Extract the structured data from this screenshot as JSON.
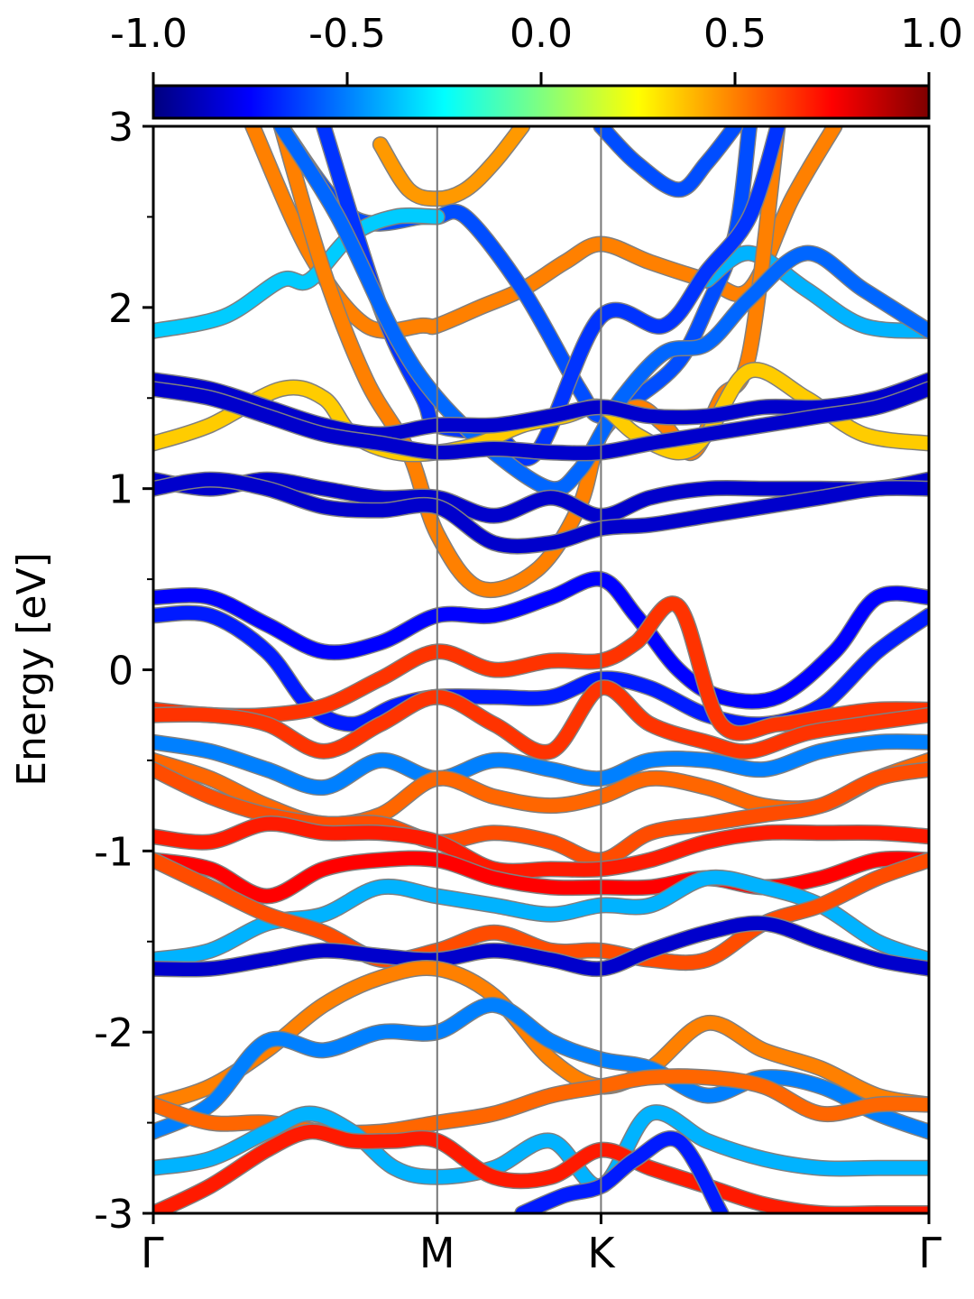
{
  "chart_data": {
    "type": "line",
    "title": "",
    "ylabel": "Energy [eV]",
    "xlabel": "",
    "ylim": [
      -3,
      3
    ],
    "y_ticks": [
      "-3",
      "-2",
      "-1",
      "0",
      "1",
      "2",
      "3"
    ],
    "x_ticks": [
      "Γ",
      "M",
      "K",
      "Γ"
    ],
    "x_tick_positions": [
      0,
      1,
      1.577,
      2.732
    ],
    "grid": false,
    "colorbar": {
      "colormap": "jet",
      "range": [
        -1.0,
        1.0
      ],
      "ticks": [
        "-1.0",
        "-0.5",
        "0.0",
        "0.5",
        "1.0"
      ],
      "placement": "top"
    },
    "series": [
      {
        "color_value": 0.5,
        "x": [
          0.35,
          0.55,
          0.75,
          0.95,
          1.0,
          1.15,
          1.3,
          1.45,
          1.577,
          1.75,
          1.95,
          2.1,
          2.25,
          2.4
        ],
        "y": [
          3.0,
          2.3,
          1.9,
          1.9,
          1.9,
          2.0,
          2.1,
          2.25,
          2.35,
          2.25,
          2.15,
          2.1,
          2.6,
          3.0
        ]
      },
      {
        "color_value": 0.45,
        "x": [
          0.8,
          0.9,
          1.0,
          1.1,
          1.2,
          1.3
        ],
        "y": [
          2.9,
          2.65,
          2.6,
          2.65,
          2.8,
          3.0
        ]
      },
      {
        "color_value": -0.6,
        "x": [
          0.45,
          0.7,
          0.95,
          1.0,
          1.1,
          1.3,
          1.5,
          1.577,
          1.7,
          1.85,
          1.95,
          2.05,
          2.1
        ],
        "y": [
          3.0,
          2.5,
          2.5,
          2.5,
          2.5,
          2.1,
          1.55,
          1.4,
          1.5,
          1.7,
          2.0,
          2.4,
          3.0
        ]
      },
      {
        "color_value": -0.6,
        "x": [
          1.577,
          1.7,
          1.85,
          1.95,
          2.05
        ],
        "y": [
          3.0,
          2.8,
          2.65,
          2.8,
          3.0
        ]
      },
      {
        "color_value": -0.35,
        "x": [
          0,
          0.25,
          0.45,
          0.55,
          0.7,
          0.85,
          1.0
        ],
        "y": [
          1.87,
          1.95,
          2.15,
          2.15,
          2.4,
          2.5,
          2.5
        ]
      },
      {
        "color_value": -0.4,
        "x": [
          1.95,
          2.1,
          2.3,
          2.5,
          2.732
        ],
        "y": [
          2.15,
          2.3,
          2.1,
          1.9,
          1.87
        ]
      },
      {
        "color_value": 0.5,
        "x": [
          0.45,
          0.6,
          0.75,
          0.9,
          1.0,
          1.15,
          1.35,
          1.5,
          1.577,
          1.7,
          1.8,
          1.9,
          2.0,
          2.1,
          2.2
        ],
        "y": [
          3.0,
          2.2,
          1.6,
          1.2,
          0.75,
          0.45,
          0.55,
          0.9,
          1.3,
          1.45,
          1.35,
          1.2,
          1.5,
          1.75,
          3.0
        ]
      },
      {
        "color_value": -0.65,
        "x": [
          0.6,
          0.8,
          0.95,
          1.0,
          1.2,
          1.35,
          1.577,
          1.8,
          1.95,
          2.1,
          2.2
        ],
        "y": [
          3.0,
          2.0,
          1.5,
          1.35,
          1.3,
          1.2,
          1.95,
          1.9,
          2.2,
          2.5,
          3.0
        ]
      },
      {
        "color_value": -0.55,
        "x": [
          0.45,
          0.65,
          0.85,
          1.0,
          1.2,
          1.4,
          1.5,
          1.577,
          1.65,
          1.8,
          1.95,
          2.1,
          2.3,
          2.5,
          2.732
        ],
        "y": [
          3.0,
          2.5,
          1.85,
          1.5,
          1.2,
          1.0,
          1.1,
          1.3,
          1.5,
          1.75,
          1.8,
          2.05,
          2.3,
          2.1,
          1.87
        ]
      },
      {
        "color_value": 0.35,
        "x": [
          0,
          0.2,
          0.45,
          0.6,
          0.7,
          0.85,
          1.0,
          1.15,
          1.3,
          1.45,
          1.577,
          1.7,
          1.85,
          1.95,
          2.1,
          2.3,
          2.5,
          2.732
        ],
        "y": [
          1.25,
          1.35,
          1.55,
          1.5,
          1.3,
          1.2,
          1.2,
          1.25,
          1.35,
          1.4,
          1.45,
          1.3,
          1.2,
          1.3,
          1.65,
          1.5,
          1.3,
          1.25
        ]
      },
      {
        "color_value": -0.85,
        "x": [
          0,
          0.2,
          0.4,
          0.6,
          0.8,
          1.0,
          1.2,
          1.4,
          1.577,
          1.75,
          1.95,
          2.15,
          2.35,
          2.55,
          2.732
        ],
        "y": [
          1.6,
          1.55,
          1.45,
          1.35,
          1.3,
          1.35,
          1.35,
          1.4,
          1.45,
          1.4,
          1.4,
          1.45,
          1.45,
          1.5,
          1.6
        ]
      },
      {
        "color_value": -0.85,
        "x": [
          0,
          0.2,
          0.4,
          0.6,
          0.8,
          1.0,
          1.2,
          1.4,
          1.577,
          1.75,
          1.95,
          2.15,
          2.35,
          2.55,
          2.732
        ],
        "y": [
          1.55,
          1.5,
          1.4,
          1.3,
          1.25,
          1.2,
          1.22,
          1.2,
          1.2,
          1.25,
          1.3,
          1.35,
          1.4,
          1.45,
          1.55
        ]
      },
      {
        "color_value": -0.85,
        "x": [
          0,
          0.2,
          0.4,
          0.6,
          0.8,
          1.0,
          1.2,
          1.4,
          1.577,
          1.75,
          1.95,
          2.15,
          2.35,
          2.55,
          2.732
        ],
        "y": [
          1.05,
          1.0,
          1.05,
          1.0,
          0.95,
          0.95,
          0.85,
          0.95,
          0.85,
          0.95,
          1.0,
          1.0,
          1.0,
          1.0,
          1.05
        ]
      },
      {
        "color_value": -0.85,
        "x": [
          0,
          0.2,
          0.4,
          0.6,
          0.8,
          1.0,
          1.2,
          1.4,
          1.577,
          1.75,
          1.95,
          2.15,
          2.35,
          2.55,
          2.732
        ],
        "y": [
          1.0,
          1.05,
          1.0,
          0.9,
          0.88,
          0.9,
          0.7,
          0.7,
          0.78,
          0.8,
          0.85,
          0.9,
          0.95,
          1.0,
          1.0
        ]
      },
      {
        "color_value": -0.75,
        "x": [
          0,
          0.2,
          0.4,
          0.6,
          0.8,
          1.0,
          1.2,
          1.4,
          1.577,
          1.7,
          1.85,
          2.0,
          2.2,
          2.4,
          2.55,
          2.732
        ],
        "y": [
          0.4,
          0.4,
          0.25,
          0.1,
          0.15,
          0.3,
          0.3,
          0.4,
          0.5,
          0.3,
          0.0,
          -0.15,
          -0.15,
          0.1,
          0.4,
          0.4
        ]
      },
      {
        "color_value": -0.7,
        "x": [
          0,
          0.2,
          0.4,
          0.55,
          0.7,
          0.85,
          1.0,
          1.2,
          1.4,
          1.577,
          1.75,
          1.95,
          2.15,
          2.35,
          2.55,
          2.732
        ],
        "y": [
          0.3,
          0.3,
          0.1,
          -0.2,
          -0.3,
          -0.2,
          -0.15,
          -0.15,
          -0.15,
          -0.05,
          -0.1,
          -0.25,
          -0.3,
          -0.2,
          0.1,
          0.3
        ]
      },
      {
        "color_value": 0.65,
        "x": [
          0,
          0.2,
          0.4,
          0.6,
          0.8,
          1.0,
          1.2,
          1.4,
          1.577,
          1.7,
          1.85,
          2.0,
          2.2,
          2.4,
          2.55,
          2.732
        ],
        "y": [
          -0.22,
          -0.25,
          -0.25,
          -0.2,
          -0.05,
          0.1,
          0.0,
          0.05,
          0.05,
          0.15,
          0.35,
          -0.3,
          -0.3,
          -0.25,
          -0.22,
          -0.22
        ]
      },
      {
        "color_value": 0.65,
        "x": [
          0,
          0.2,
          0.4,
          0.6,
          0.8,
          1.0,
          1.2,
          1.4,
          1.577,
          1.75,
          1.95,
          2.1,
          2.3,
          2.5,
          2.732
        ],
        "y": [
          -0.25,
          -0.25,
          -0.3,
          -0.45,
          -0.3,
          -0.15,
          -0.3,
          -0.45,
          -0.1,
          -0.3,
          -0.4,
          -0.45,
          -0.35,
          -0.3,
          -0.25
        ]
      },
      {
        "color_value": -0.5,
        "x": [
          0,
          0.2,
          0.4,
          0.6,
          0.8,
          1.0,
          1.2,
          1.4,
          1.577,
          1.75,
          1.95,
          2.15,
          2.35,
          2.55,
          2.732
        ],
        "y": [
          -0.4,
          -0.45,
          -0.55,
          -0.65,
          -0.5,
          -0.6,
          -0.5,
          -0.55,
          -0.6,
          -0.5,
          -0.5,
          -0.55,
          -0.45,
          -0.4,
          -0.4
        ]
      },
      {
        "color_value": 0.55,
        "x": [
          0,
          0.2,
          0.4,
          0.6,
          0.8,
          1.0,
          1.2,
          1.4,
          1.577,
          1.75,
          1.95,
          2.15,
          2.35,
          2.55,
          2.732
        ],
        "y": [
          -0.5,
          -0.6,
          -0.75,
          -0.85,
          -0.8,
          -0.6,
          -0.7,
          -0.75,
          -0.7,
          -0.6,
          -0.65,
          -0.75,
          -0.75,
          -0.6,
          -0.5
        ]
      },
      {
        "color_value": 0.6,
        "x": [
          0,
          0.2,
          0.4,
          0.6,
          0.8,
          1.0,
          1.2,
          1.4,
          1.577,
          1.75,
          1.95,
          2.15,
          2.35,
          2.55,
          2.732
        ],
        "y": [
          -0.55,
          -0.7,
          -0.8,
          -0.85,
          -0.85,
          -0.95,
          -0.9,
          -0.95,
          -1.05,
          -0.9,
          -0.85,
          -0.8,
          -0.75,
          -0.6,
          -0.55
        ]
      },
      {
        "color_value": 0.7,
        "x": [
          0,
          0.2,
          0.4,
          0.6,
          0.8,
          1.0,
          1.2,
          1.4,
          1.577,
          1.75,
          1.95,
          2.15,
          2.35,
          2.55,
          2.732
        ],
        "y": [
          -0.92,
          -0.95,
          -0.85,
          -0.9,
          -0.9,
          -0.95,
          -1.1,
          -1.1,
          -1.1,
          -1.05,
          -0.95,
          -0.9,
          -0.9,
          -0.9,
          -0.92
        ]
      },
      {
        "color_value": 0.75,
        "x": [
          0,
          0.2,
          0.4,
          0.6,
          0.8,
          1.0,
          1.2,
          1.4,
          1.577,
          1.75,
          1.95,
          2.15,
          2.35,
          2.55,
          2.732
        ],
        "y": [
          -1.05,
          -1.1,
          -1.25,
          -1.1,
          -1.05,
          -1.05,
          -1.15,
          -1.2,
          -1.2,
          -1.2,
          -1.15,
          -1.2,
          -1.15,
          -1.05,
          -1.05
        ]
      },
      {
        "color_value": -0.4,
        "x": [
          0,
          0.2,
          0.4,
          0.6,
          0.8,
          1.0,
          1.2,
          1.4,
          1.577,
          1.75,
          1.95,
          2.15,
          2.35,
          2.55,
          2.732
        ],
        "y": [
          -1.6,
          -1.55,
          -1.4,
          -1.35,
          -1.2,
          -1.25,
          -1.3,
          -1.35,
          -1.3,
          -1.3,
          -1.15,
          -1.2,
          -1.3,
          -1.5,
          -1.6
        ]
      },
      {
        "color_value": 0.6,
        "x": [
          0,
          0.2,
          0.4,
          0.6,
          0.8,
          1.0,
          1.2,
          1.4,
          1.577,
          1.75,
          1.95,
          2.15,
          2.35,
          2.55,
          2.732
        ],
        "y": [
          -1.05,
          -1.2,
          -1.35,
          -1.45,
          -1.6,
          -1.55,
          -1.45,
          -1.55,
          -1.55,
          -1.6,
          -1.6,
          -1.4,
          -1.3,
          -1.15,
          -1.05
        ]
      },
      {
        "color_value": -0.85,
        "x": [
          0,
          0.2,
          0.4,
          0.6,
          0.8,
          1.0,
          1.2,
          1.4,
          1.577,
          1.75,
          1.95,
          2.15,
          2.35,
          2.55,
          2.732
        ],
        "y": [
          -1.65,
          -1.65,
          -1.6,
          -1.55,
          -1.58,
          -1.6,
          -1.55,
          -1.6,
          -1.65,
          -1.55,
          -1.45,
          -1.4,
          -1.5,
          -1.6,
          -1.65
        ]
      },
      {
        "color_value": 0.5,
        "x": [
          0,
          0.2,
          0.4,
          0.6,
          0.8,
          1.0,
          1.2,
          1.4,
          1.577,
          1.75,
          1.95,
          2.15,
          2.35,
          2.55,
          2.732
        ],
        "y": [
          -2.4,
          -2.3,
          -2.1,
          -1.85,
          -1.7,
          -1.65,
          -1.8,
          -2.15,
          -2.3,
          -2.2,
          -1.95,
          -2.1,
          -2.2,
          -2.35,
          -2.4
        ]
      },
      {
        "color_value": -0.5,
        "x": [
          0,
          0.2,
          0.4,
          0.6,
          0.8,
          1.0,
          1.2,
          1.4,
          1.577,
          1.75,
          1.95,
          2.15,
          2.35,
          2.55,
          2.732
        ],
        "y": [
          -2.55,
          -2.4,
          -2.05,
          -2.1,
          -2.0,
          -2.0,
          -1.85,
          -2.05,
          -2.15,
          -2.2,
          -2.35,
          -2.25,
          -2.3,
          -2.45,
          -2.55
        ]
      },
      {
        "color_value": 0.55,
        "x": [
          0,
          0.2,
          0.4,
          0.6,
          0.8,
          1.0,
          1.2,
          1.4,
          1.577,
          1.75,
          1.95,
          2.15,
          2.35,
          2.55,
          2.732
        ],
        "y": [
          -2.4,
          -2.5,
          -2.5,
          -2.55,
          -2.55,
          -2.5,
          -2.45,
          -2.35,
          -2.3,
          -2.25,
          -2.25,
          -2.3,
          -2.45,
          -2.4,
          -2.4
        ]
      },
      {
        "color_value": -0.4,
        "x": [
          0,
          0.2,
          0.4,
          0.55,
          0.7,
          0.85,
          1.0,
          1.2,
          1.4,
          1.577,
          1.75,
          1.95,
          2.15,
          2.35,
          2.55,
          2.732
        ],
        "y": [
          -2.75,
          -2.7,
          -2.55,
          -2.45,
          -2.55,
          -2.75,
          -2.8,
          -2.75,
          -2.6,
          -2.85,
          -2.45,
          -2.6,
          -2.7,
          -2.75,
          -2.75,
          -2.75
        ]
      },
      {
        "color_value": 0.7,
        "x": [
          0,
          0.2,
          0.4,
          0.55,
          0.7,
          0.85,
          1.0,
          1.2,
          1.4,
          1.577,
          1.75,
          1.95,
          2.15,
          2.35,
          2.55,
          2.732
        ],
        "y": [
          -3.0,
          -2.85,
          -2.65,
          -2.55,
          -2.6,
          -2.6,
          -2.6,
          -2.8,
          -2.8,
          -2.65,
          -2.75,
          -2.85,
          -2.95,
          -3.0,
          -3.0,
          -3.0
        ]
      },
      {
        "color_value": -0.7,
        "x": [
          1.3,
          1.45,
          1.577,
          1.7,
          1.85,
          2.0
        ],
        "y": [
          -3.0,
          -2.9,
          -2.85,
          -2.7,
          -2.6,
          -3.0
        ]
      }
    ]
  }
}
